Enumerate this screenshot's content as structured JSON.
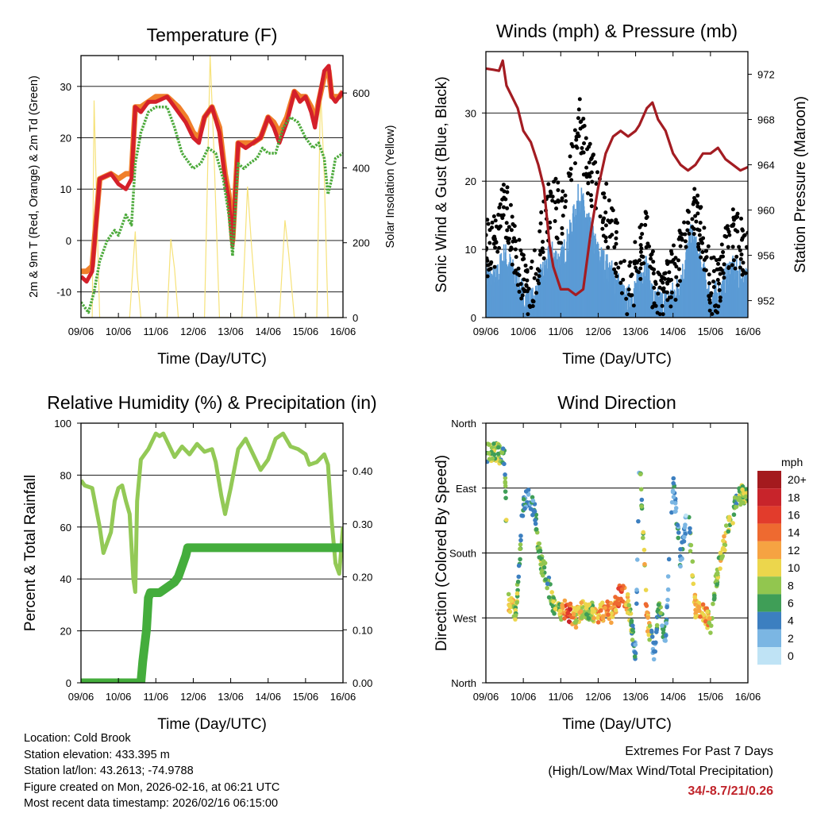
{
  "colors": {
    "temp_2m": "#d4202a",
    "temp_9m": "#f07f2a",
    "dewpoint": "#4daa3c",
    "solar": "#f6e27a",
    "wind": "#5b9bd5",
    "gust": "#000000",
    "pressure": "#a31c22",
    "rh": "#93c956",
    "rain": "#44ad3c",
    "extremes_text": "#c0232a"
  },
  "chart_data": [
    {
      "id": "temperature",
      "type": "line",
      "title": "Temperature (F)",
      "xlabel": "Time (Day/UTC)",
      "ylabel": "2m & 9m T (Red, Orange) & 2m Td (Green)",
      "ylabel_right": "Solar Insolation (Yellow)",
      "xlim": [
        0,
        7
      ],
      "ylim": [
        -15,
        36
      ],
      "y2lim": [
        0,
        700
      ],
      "x_ticks": [
        "09/06",
        "10/06",
        "11/06",
        "12/06",
        "13/06",
        "14/06",
        "15/06",
        "16/06"
      ],
      "y_ticks": [
        -10,
        0,
        10,
        20,
        30
      ],
      "y2_ticks": [
        0,
        200,
        400,
        600
      ],
      "grid": "horizontal",
      "series": [
        {
          "name": "2m T",
          "axis": "left",
          "color_key": "temp_2m",
          "x": [
            0,
            0.15,
            0.3,
            0.5,
            0.8,
            1.0,
            1.2,
            1.35,
            1.45,
            1.6,
            1.8,
            2.0,
            2.3,
            2.6,
            2.8,
            3.0,
            3.15,
            3.3,
            3.5,
            3.7,
            3.85,
            3.95,
            4.05,
            4.2,
            4.4,
            4.6,
            4.8,
            5.0,
            5.15,
            5.3,
            5.5,
            5.7,
            5.85,
            6.0,
            6.15,
            6.25,
            6.35,
            6.5,
            6.62,
            6.7,
            6.8,
            6.9,
            7.0
          ],
          "values": [
            -7,
            -8,
            -6,
            12,
            13,
            11,
            10,
            12,
            26,
            25,
            27,
            27,
            28,
            25,
            23,
            20,
            19,
            24,
            26,
            21,
            12,
            8,
            -1,
            19,
            18,
            19,
            20,
            24,
            22,
            19,
            23,
            29,
            27,
            28,
            25,
            22,
            27,
            33,
            34,
            28,
            27,
            28,
            29
          ]
        },
        {
          "name": "9m T",
          "axis": "left",
          "color_key": "temp_9m",
          "x": [
            0,
            0.15,
            0.3,
            0.5,
            0.8,
            1.0,
            1.2,
            1.35,
            1.45,
            1.6,
            1.8,
            2.0,
            2.3,
            2.6,
            2.8,
            3.0,
            3.15,
            3.3,
            3.5,
            3.7,
            3.85,
            3.95,
            4.05,
            4.2,
            4.4,
            4.6,
            4.8,
            5.0,
            5.15,
            5.3,
            5.5,
            5.7,
            5.85,
            6.0,
            6.15,
            6.25,
            6.35,
            6.5,
            6.62,
            6.7,
            6.8,
            6.9,
            7.0
          ],
          "values": [
            -6,
            -6,
            -5,
            12,
            13,
            12,
            13,
            13,
            26,
            26,
            27,
            28,
            28,
            26,
            24,
            21,
            20,
            24,
            26,
            22,
            13,
            9,
            0,
            19,
            19,
            19,
            20,
            24,
            23,
            21,
            24,
            29,
            28,
            28,
            26,
            23,
            27,
            32,
            33,
            28,
            28,
            28,
            29
          ]
        },
        {
          "name": "2m Td",
          "axis": "left",
          "color_key": "dewpoint",
          "x": [
            0,
            0.2,
            0.35,
            0.5,
            0.7,
            0.9,
            1.0,
            1.1,
            1.2,
            1.35,
            1.45,
            1.6,
            1.8,
            2.0,
            2.3,
            2.5,
            2.7,
            2.9,
            3.0,
            3.2,
            3.4,
            3.6,
            3.8,
            3.95,
            4.05,
            4.2,
            4.35,
            4.5,
            4.7,
            4.85,
            5.0,
            5.2,
            5.4,
            5.6,
            5.8,
            6.0,
            6.2,
            6.35,
            6.5,
            6.6,
            6.7,
            6.8,
            7.0
          ],
          "values": [
            -12,
            -14,
            -10,
            -4,
            0,
            2,
            1,
            3,
            5,
            3,
            15,
            21,
            25,
            26,
            26,
            22,
            17,
            15,
            14,
            15,
            18,
            17,
            12,
            5,
            -3,
            15,
            14,
            15,
            16,
            18,
            17,
            17,
            22,
            24,
            23,
            20,
            18,
            19,
            16,
            9,
            12,
            16,
            17
          ]
        },
        {
          "name": "Solar Insolation",
          "axis": "right",
          "color_key": "solar",
          "x": [
            0,
            0.3,
            0.35,
            0.42,
            0.5,
            1.3,
            1.45,
            1.5,
            1.6,
            2.3,
            2.4,
            2.5,
            2.6,
            3.3,
            3.45,
            3.55,
            3.7,
            4.3,
            4.45,
            4.55,
            4.7,
            5.3,
            5.45,
            5.55,
            5.7,
            6.3,
            6.4,
            6.5,
            6.6,
            7.0
          ],
          "values": [
            0,
            0,
            580,
            300,
            0,
            0,
            230,
            120,
            0,
            0,
            210,
            130,
            0,
            0,
            700,
            450,
            0,
            0,
            350,
            200,
            0,
            0,
            260,
            170,
            0,
            0,
            610,
            380,
            0,
            0
          ]
        }
      ]
    },
    {
      "id": "winds",
      "type": "scatter",
      "title": "Winds (mph) & Pressure (mb)",
      "xlabel": "Time (Day/UTC)",
      "ylabel": "Sonic Wind & Gust (Blue, Black)",
      "ylabel_right": "Station Pressure (Maroon)",
      "xlim": [
        0,
        7
      ],
      "ylim": [
        0,
        39
      ],
      "y2lim": [
        950.5,
        974
      ],
      "x_ticks": [
        "09/06",
        "10/06",
        "11/06",
        "12/06",
        "13/06",
        "14/06",
        "15/06",
        "16/06"
      ],
      "y_ticks": [
        0,
        10,
        20,
        30
      ],
      "y2_ticks": [
        952,
        956,
        960,
        964,
        968,
        972
      ],
      "grid": "horizontal",
      "series": [
        {
          "name": "Gust",
          "axis": "left",
          "color_key": "gust",
          "x": [
            0,
            0.25,
            0.5,
            0.75,
            1.0,
            1.25,
            1.5,
            1.75,
            2.0,
            2.25,
            2.5,
            2.75,
            3.0,
            3.25,
            3.5,
            3.75,
            4.0,
            4.25,
            4.5,
            4.75,
            5.0,
            5.25,
            5.5,
            5.75,
            6.0,
            6.25,
            6.5,
            6.75,
            7.0
          ],
          "values": [
            10,
            11,
            17,
            11,
            5,
            4,
            12,
            17,
            15,
            22,
            28,
            22,
            17,
            15,
            10,
            3,
            7,
            13,
            4,
            3,
            6,
            10,
            16,
            12,
            5,
            5,
            12,
            11,
            8
          ]
        },
        {
          "name": "Wind",
          "axis": "left",
          "color_key": "wind",
          "x": [
            0,
            0.25,
            0.5,
            0.75,
            1.0,
            1.25,
            1.5,
            1.75,
            2.0,
            2.25,
            2.5,
            2.75,
            3.0,
            3.25,
            3.5,
            3.75,
            4.0,
            4.25,
            4.5,
            4.75,
            5.0,
            5.25,
            5.5,
            5.75,
            6.0,
            6.25,
            6.5,
            6.75,
            7.0
          ],
          "values": [
            6,
            5,
            9,
            6,
            3,
            2,
            6,
            9,
            8,
            12,
            18,
            13,
            9,
            7,
            5,
            2,
            4,
            8,
            2,
            2,
            3,
            6,
            12,
            7,
            3,
            3,
            7,
            6,
            5
          ]
        },
        {
          "name": "Station Pressure",
          "axis": "right",
          "color_key": "pressure",
          "x": [
            0,
            0.2,
            0.35,
            0.45,
            0.55,
            0.7,
            0.85,
            1.0,
            1.2,
            1.4,
            1.55,
            1.7,
            1.8,
            2.0,
            2.2,
            2.4,
            2.6,
            2.8,
            3.0,
            3.2,
            3.4,
            3.6,
            3.8,
            4.0,
            4.1,
            4.3,
            4.45,
            4.6,
            4.8,
            5.0,
            5.2,
            5.4,
            5.6,
            5.8,
            6.0,
            6.2,
            6.4,
            6.6,
            6.8,
            7.0
          ],
          "values": [
            972.5,
            972.4,
            972.3,
            973.2,
            971.0,
            970.0,
            969.0,
            967.0,
            966.0,
            964.0,
            962.0,
            957.0,
            955.0,
            953.0,
            953.0,
            952.5,
            953.0,
            958.0,
            962.0,
            965.0,
            966.5,
            967.0,
            966.5,
            967.0,
            967.5,
            969.0,
            969.5,
            968.0,
            967.0,
            965.0,
            964.0,
            963.5,
            964.0,
            965.0,
            965.0,
            965.5,
            964.5,
            964.0,
            963.5,
            963.8
          ]
        }
      ]
    },
    {
      "id": "humidity",
      "type": "line",
      "title": "Relative Humidity (%) & Precipitation (in)",
      "xlabel": "Time (Day/UTC)",
      "ylabel": "Percent & Total Rainfall",
      "xlim": [
        0,
        7
      ],
      "ylim": [
        0,
        100
      ],
      "y2lim": [
        0,
        0.49
      ],
      "x_ticks": [
        "09/06",
        "10/06",
        "11/06",
        "12/06",
        "13/06",
        "14/06",
        "15/06",
        "16/06"
      ],
      "y_ticks": [
        0,
        20,
        40,
        60,
        80,
        100
      ],
      "y2_ticks": [
        "0.00",
        "0.10",
        "0.20",
        "0.30",
        "0.40"
      ],
      "grid": "horizontal",
      "series": [
        {
          "name": "Relative Humidity",
          "axis": "left",
          "color_key": "rh",
          "x": [
            0,
            0.1,
            0.3,
            0.5,
            0.6,
            0.8,
            0.9,
            1.0,
            1.1,
            1.2,
            1.3,
            1.4,
            1.45,
            1.5,
            1.6,
            1.8,
            2.0,
            2.1,
            2.2,
            2.3,
            2.5,
            2.7,
            2.9,
            3.1,
            3.3,
            3.5,
            3.6,
            3.75,
            3.85,
            4.0,
            4.2,
            4.4,
            4.6,
            4.8,
            5.0,
            5.2,
            5.4,
            5.6,
            5.8,
            6.0,
            6.1,
            6.3,
            6.5,
            6.6,
            6.7,
            6.8,
            6.9,
            7.0
          ],
          "values": [
            78,
            76,
            75,
            60,
            50,
            58,
            70,
            75,
            76,
            70,
            65,
            40,
            35,
            70,
            86,
            90,
            96,
            95,
            96,
            93,
            87,
            91,
            88,
            92,
            89,
            90,
            85,
            72,
            65,
            75,
            90,
            94,
            88,
            82,
            86,
            94,
            96,
            91,
            90,
            88,
            84,
            85,
            88,
            84,
            62,
            46,
            42,
            60
          ]
        },
        {
          "name": "Total Rainfall",
          "axis": "right",
          "color_key": "rain",
          "x": [
            0,
            1.6,
            1.65,
            1.7,
            1.75,
            1.8,
            1.85,
            1.95,
            2.1,
            2.3,
            2.5,
            2.6,
            2.7,
            2.8,
            2.85,
            3.0,
            7.0
          ],
          "values": [
            0,
            0,
            0.04,
            0.07,
            0.1,
            0.16,
            0.17,
            0.17,
            0.17,
            0.18,
            0.19,
            0.2,
            0.22,
            0.24,
            0.255,
            0.255,
            0.255
          ]
        }
      ]
    },
    {
      "id": "direction",
      "type": "scatter",
      "title": "Wind Direction",
      "xlabel": "Time (Day/UTC)",
      "ylabel": "Direction (Colored By Speed)",
      "xlim": [
        0,
        7
      ],
      "ylim": [
        0,
        360
      ],
      "x_ticks": [
        "09/06",
        "10/06",
        "11/06",
        "12/06",
        "13/06",
        "14/06",
        "15/06",
        "16/06"
      ],
      "y_ticks": [
        "North",
        "West",
        "South",
        "East",
        "North"
      ],
      "y_tick_values": [
        0,
        90,
        180,
        270,
        360
      ],
      "grid": "horizontal",
      "legend": {
        "title": "mph",
        "position": "right",
        "labels": [
          "20+",
          "18",
          "16",
          "14",
          "12",
          "10",
          "8",
          "6",
          "4",
          "2",
          "0"
        ],
        "colors": [
          "#a41a1e",
          "#c8242b",
          "#e23c2c",
          "#ee6a30",
          "#f6a342",
          "#ecd64c",
          "#92c64f",
          "#3f9e57",
          "#3c7fc0",
          "#7bb6e3",
          "#bfe3f5"
        ]
      },
      "series": [
        {
          "name": "Direction",
          "x": [
            0.1,
            0.3,
            0.5,
            0.6,
            0.8,
            1.0,
            1.15,
            1.3,
            1.45,
            1.6,
            1.8,
            2.0,
            2.2,
            2.4,
            2.6,
            2.8,
            3.0,
            3.2,
            3.4,
            3.6,
            3.8,
            4.0,
            4.1,
            4.3,
            4.5,
            4.6,
            4.8,
            5.0,
            5.2,
            5.4,
            5.6,
            5.8,
            6.0,
            6.1,
            6.3,
            6.5,
            6.7,
            6.8
          ],
          "values": [
            320,
            320,
            310,
            110,
            100,
            250,
            255,
            240,
            170,
            150,
            110,
            100,
            100,
            90,
            100,
            100,
            95,
            100,
            95,
            130,
            110,
            40,
            320,
            90,
            40,
            110,
            60,
            280,
            170,
            240,
            100,
            100,
            80,
            130,
            180,
            220,
            250,
            260
          ],
          "speeds": [
            7,
            8,
            6,
            10,
            9,
            4,
            3,
            5,
            8,
            6,
            8,
            9,
            17,
            10,
            9,
            7,
            12,
            13,
            11,
            15,
            11,
            3,
            3,
            14,
            2,
            6,
            4,
            3,
            4,
            3,
            12,
            12,
            11,
            6,
            10,
            9,
            6,
            8
          ]
        }
      ]
    }
  ],
  "footer": {
    "location": "Location: Cold Brook",
    "elevation": "Station elevation: 433.395 m",
    "latlon": "Station lat/lon: 43.2613; -74.9788",
    "created": "Figure created on Mon, 2026-02-16, at 06:21 UTC",
    "timestamp": "Most recent data timestamp: 2026/02/16 06:15:00"
  },
  "extremes": {
    "title": "Extremes For Past 7 Days",
    "subtitle": "(High/Low/Max Wind/Total Precipitation)",
    "values": "34/-8.7/21/0.26"
  }
}
